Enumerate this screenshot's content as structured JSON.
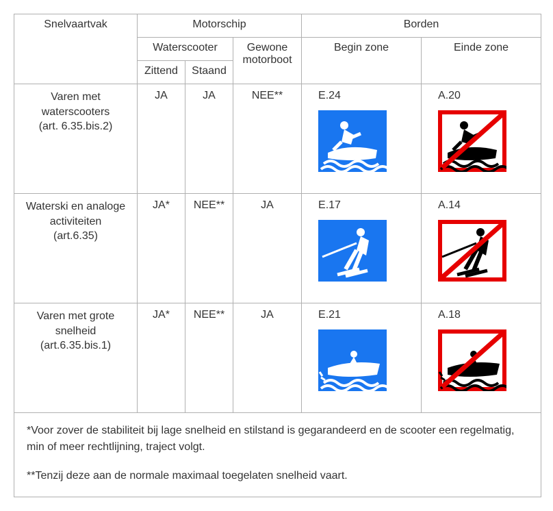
{
  "headers": {
    "snelvaartvak": "Snelvaartvak",
    "motorschip": "Motorschip",
    "borden": "Borden",
    "waterscooter": "Waterscooter",
    "gewone_motorboot": "Gewone motorboot",
    "begin_zone": "Begin zone",
    "einde_zone": "Einde zone",
    "zittend": "Zittend",
    "staand": "Staand"
  },
  "rows": [
    {
      "label_line1": "Varen met",
      "label_line2": "waterscooters",
      "label_line3": "(art. 6.35.bis.2)",
      "zittend": "JA",
      "staand": "JA",
      "gewone": "NEE**",
      "begin_code": "E.24",
      "begin_icon": "jetski",
      "einde_code": "A.20",
      "einde_icon": "jetski"
    },
    {
      "label_line1": "Waterski en analoge",
      "label_line2": "activiteiten",
      "label_line3": "(art.6.35)",
      "zittend": "JA*",
      "staand": "NEE**",
      "gewone": "JA",
      "begin_code": "E.17",
      "begin_icon": "waterski",
      "einde_code": "A.14",
      "einde_icon": "waterski"
    },
    {
      "label_line1": "Varen met grote",
      "label_line2": "snelheid",
      "label_line3": "(art.6.35.bis.1)",
      "zittend": "JA*",
      "staand": "NEE**",
      "gewone": "JA",
      "begin_code": "E.21",
      "begin_icon": "speedboat",
      "einde_code": "A.18",
      "einde_icon": "speedboat"
    }
  ],
  "footnote1": "*Voor zover de stabiliteit bij lage snelheid en stilstand is gegarandeerd en de scooter een regelmatig, min of meer rechtlijning, traject volgt.",
  "footnote2": "**Tenzij deze aan de normale maximaal toegelaten snelheid vaart.",
  "colors": {
    "permitted_bg": "#1976f0",
    "permitted_fg": "#ffffff",
    "prohibited_border": "#e60000",
    "prohibited_bg": "#ffffff",
    "prohibited_fg": "#000000"
  }
}
